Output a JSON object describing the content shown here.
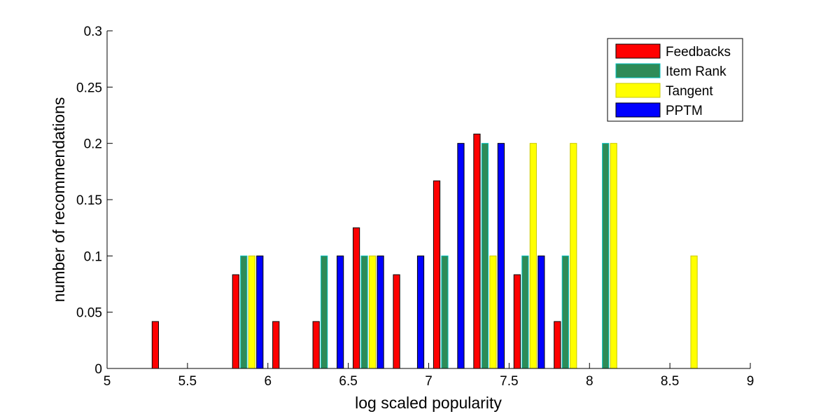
{
  "chart_data": {
    "type": "bar",
    "title": "",
    "xlabel": "log scaled popularity",
    "ylabel": "number of recommendations",
    "xlim": [
      5,
      9
    ],
    "ylim": [
      0,
      0.3
    ],
    "xticks": [
      "5",
      "5.5",
      "6",
      "6.5",
      "7",
      "7.5",
      "8",
      "8.5",
      "9"
    ],
    "yticks": [
      "0",
      "0.05",
      "0.1",
      "0.15",
      "0.2",
      "0.25",
      "0.3"
    ],
    "legend_position": "top-right",
    "grid": false,
    "x": [
      5.125,
      5.375,
      5.625,
      5.875,
      6.125,
      6.375,
      6.625,
      6.875,
      7.125,
      7.375,
      7.625,
      7.875,
      8.125,
      8.375,
      8.625,
      8.875
    ],
    "series": [
      {
        "name": "Feedbacks",
        "color": "#ff0000",
        "edge": "#000000",
        "values": [
          0,
          0.0417,
          0,
          0.0833,
          0.0417,
          0.0417,
          0.125,
          0.0833,
          0.1667,
          0.2083,
          0.0833,
          0.0417,
          0,
          0,
          0,
          0
        ]
      },
      {
        "name": "Item Rank",
        "color": "#2e8b57",
        "edge": "#00c0c0",
        "values": [
          0,
          0,
          0,
          0.1,
          0,
          0.1,
          0.1,
          0,
          0.1,
          0.2,
          0.1,
          0.1,
          0.2,
          0,
          0,
          0
        ]
      },
      {
        "name": "Tangent",
        "color": "#ffff00",
        "edge": "#c8c800",
        "values": [
          0,
          0,
          0,
          0.1,
          0,
          0,
          0.1,
          0,
          0,
          0.1,
          0.2,
          0.2,
          0.2,
          0,
          0.1,
          0
        ]
      },
      {
        "name": "PPTM",
        "color": "#0000ff",
        "edge": "#000000",
        "values": [
          0,
          0,
          0,
          0.1,
          0,
          0.1,
          0.1,
          0.1,
          0.2,
          0.2,
          0.1,
          0,
          0,
          0,
          0,
          0
        ]
      }
    ]
  }
}
